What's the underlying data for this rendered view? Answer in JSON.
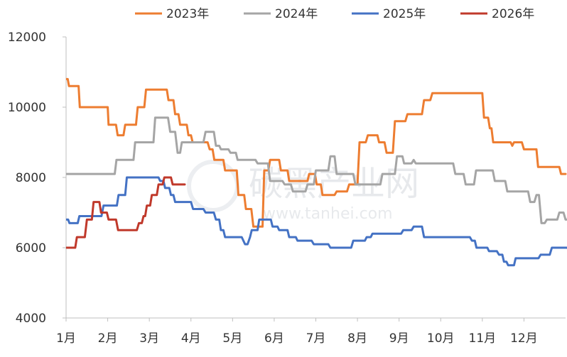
{
  "chart_data": {
    "type": "line",
    "title": "",
    "xlabel": "",
    "ylabel": "",
    "ylim": [
      4000,
      12000
    ],
    "yticks": [
      4000,
      6000,
      8000,
      10000,
      12000
    ],
    "xlim": [
      1,
      13
    ],
    "xticks": [
      {
        "value": 1,
        "label": "1月"
      },
      {
        "value": 2,
        "label": "2月"
      },
      {
        "value": 3,
        "label": "3月"
      },
      {
        "value": 4,
        "label": "4月"
      },
      {
        "value": 5,
        "label": "5月"
      },
      {
        "value": 6,
        "label": "6月"
      },
      {
        "value": 7,
        "label": "7月"
      },
      {
        "value": 8,
        "label": "8月"
      },
      {
        "value": 9,
        "label": "9月"
      },
      {
        "value": 10,
        "label": "10月"
      },
      {
        "value": 11,
        "label": "11月"
      },
      {
        "value": 12,
        "label": "12月"
      }
    ],
    "grid": false,
    "legend_position": "top",
    "series": [
      {
        "name": "2023年",
        "color": "#ED7D31",
        "points": [
          [
            1.0,
            10800
          ],
          [
            1.04,
            10800
          ],
          [
            1.07,
            10600
          ],
          [
            1.3,
            10600
          ],
          [
            1.33,
            10000
          ],
          [
            2.0,
            10000
          ],
          [
            2.02,
            9500
          ],
          [
            2.2,
            9500
          ],
          [
            2.24,
            9200
          ],
          [
            2.38,
            9200
          ],
          [
            2.42,
            9500
          ],
          [
            2.68,
            9500
          ],
          [
            2.72,
            10000
          ],
          [
            2.88,
            10000
          ],
          [
            2.92,
            10500
          ],
          [
            3.42,
            10500
          ],
          [
            3.46,
            10200
          ],
          [
            3.58,
            10200
          ],
          [
            3.62,
            9800
          ],
          [
            3.7,
            9800
          ],
          [
            3.74,
            9500
          ],
          [
            3.9,
            9500
          ],
          [
            3.94,
            9200
          ],
          [
            4.0,
            9200
          ],
          [
            4.04,
            9000
          ],
          [
            4.4,
            9000
          ],
          [
            4.45,
            8800
          ],
          [
            4.52,
            8800
          ],
          [
            4.56,
            8500
          ],
          [
            4.78,
            8500
          ],
          [
            4.82,
            8200
          ],
          [
            5.1,
            8200
          ],
          [
            5.14,
            7500
          ],
          [
            5.28,
            7500
          ],
          [
            5.32,
            7100
          ],
          [
            5.45,
            7100
          ],
          [
            5.5,
            6600
          ],
          [
            5.72,
            6600
          ],
          [
            5.76,
            8200
          ],
          [
            5.86,
            8200
          ],
          [
            5.9,
            8500
          ],
          [
            6.12,
            8500
          ],
          [
            6.16,
            8200
          ],
          [
            6.32,
            8200
          ],
          [
            6.36,
            7900
          ],
          [
            6.8,
            7900
          ],
          [
            6.84,
            8100
          ],
          [
            6.98,
            8100
          ],
          [
            7.02,
            7800
          ],
          [
            7.12,
            7800
          ],
          [
            7.16,
            7500
          ],
          [
            7.45,
            7500
          ],
          [
            7.5,
            7600
          ],
          [
            7.75,
            7600
          ],
          [
            7.8,
            7800
          ],
          [
            8.0,
            7800
          ],
          [
            8.05,
            9000
          ],
          [
            8.2,
            9000
          ],
          [
            8.25,
            9200
          ],
          [
            8.48,
            9200
          ],
          [
            8.52,
            9000
          ],
          [
            8.65,
            9000
          ],
          [
            8.7,
            8700
          ],
          [
            8.85,
            8700
          ],
          [
            8.9,
            9600
          ],
          [
            9.15,
            9600
          ],
          [
            9.2,
            9800
          ],
          [
            9.55,
            9800
          ],
          [
            9.6,
            10200
          ],
          [
            9.75,
            10200
          ],
          [
            9.8,
            10400
          ],
          [
            11.0,
            10400
          ],
          [
            11.04,
            9700
          ],
          [
            11.14,
            9700
          ],
          [
            11.18,
            9400
          ],
          [
            11.22,
            9400
          ],
          [
            11.26,
            9000
          ],
          [
            11.68,
            9000
          ],
          [
            11.72,
            8900
          ],
          [
            11.76,
            9000
          ],
          [
            11.95,
            9000
          ],
          [
            12.0,
            8800
          ],
          [
            12.3,
            8800
          ],
          [
            12.34,
            8300
          ],
          [
            12.85,
            8300
          ],
          [
            12.89,
            8100
          ],
          [
            13.0,
            8100
          ]
        ]
      },
      {
        "name": "2024年",
        "color": "#A5A5A5",
        "points": [
          [
            1.0,
            8100
          ],
          [
            2.17,
            8100
          ],
          [
            2.21,
            8500
          ],
          [
            2.62,
            8500
          ],
          [
            2.66,
            9000
          ],
          [
            3.1,
            9000
          ],
          [
            3.14,
            9700
          ],
          [
            3.45,
            9700
          ],
          [
            3.5,
            9300
          ],
          [
            3.62,
            9300
          ],
          [
            3.68,
            8700
          ],
          [
            3.74,
            8700
          ],
          [
            3.78,
            9000
          ],
          [
            4.3,
            9000
          ],
          [
            4.35,
            9300
          ],
          [
            4.55,
            9300
          ],
          [
            4.6,
            8900
          ],
          [
            4.68,
            8900
          ],
          [
            4.72,
            8800
          ],
          [
            4.9,
            8800
          ],
          [
            4.95,
            8700
          ],
          [
            5.08,
            8700
          ],
          [
            5.12,
            8500
          ],
          [
            5.55,
            8500
          ],
          [
            5.6,
            8400
          ],
          [
            5.85,
            8400
          ],
          [
            5.9,
            7900
          ],
          [
            6.2,
            7900
          ],
          [
            6.25,
            7800
          ],
          [
            6.4,
            7800
          ],
          [
            6.45,
            7600
          ],
          [
            6.75,
            7600
          ],
          [
            6.8,
            7800
          ],
          [
            6.95,
            7800
          ],
          [
            7.0,
            8200
          ],
          [
            7.3,
            8200
          ],
          [
            7.35,
            8600
          ],
          [
            7.45,
            8600
          ],
          [
            7.5,
            8100
          ],
          [
            7.9,
            8100
          ],
          [
            7.95,
            7800
          ],
          [
            8.55,
            7800
          ],
          [
            8.6,
            8100
          ],
          [
            8.9,
            8100
          ],
          [
            8.95,
            8600
          ],
          [
            9.08,
            8600
          ],
          [
            9.12,
            8400
          ],
          [
            9.3,
            8400
          ],
          [
            9.35,
            8500
          ],
          [
            9.4,
            8400
          ],
          [
            10.3,
            8400
          ],
          [
            10.35,
            8100
          ],
          [
            10.55,
            8100
          ],
          [
            10.6,
            7800
          ],
          [
            10.8,
            7800
          ],
          [
            10.85,
            8200
          ],
          [
            11.25,
            8200
          ],
          [
            11.3,
            7900
          ],
          [
            11.55,
            7900
          ],
          [
            11.6,
            7600
          ],
          [
            12.1,
            7600
          ],
          [
            12.15,
            7300
          ],
          [
            12.25,
            7300
          ],
          [
            12.3,
            7500
          ],
          [
            12.36,
            7500
          ],
          [
            12.42,
            6700
          ],
          [
            12.5,
            6700
          ],
          [
            12.55,
            6800
          ],
          [
            12.8,
            6800
          ],
          [
            12.85,
            7000
          ],
          [
            12.95,
            7000
          ],
          [
            13.0,
            6800
          ],
          [
            13.2,
            6800
          ],
          [
            13.25,
            6700
          ],
          [
            13.4,
            6700
          ],
          [
            13.45,
            6800
          ],
          [
            13.55,
            6800
          ]
        ]
      },
      {
        "name": "2025年",
        "color": "#4472C4",
        "points": [
          [
            1.0,
            6800
          ],
          [
            1.05,
            6800
          ],
          [
            1.08,
            6700
          ],
          [
            1.28,
            6700
          ],
          [
            1.32,
            6900
          ],
          [
            1.85,
            6900
          ],
          [
            1.9,
            7200
          ],
          [
            2.22,
            7200
          ],
          [
            2.26,
            7500
          ],
          [
            2.42,
            7500
          ],
          [
            2.46,
            8000
          ],
          [
            3.22,
            8000
          ],
          [
            3.26,
            7900
          ],
          [
            3.34,
            7900
          ],
          [
            3.38,
            7700
          ],
          [
            3.48,
            7700
          ],
          [
            3.52,
            7500
          ],
          [
            3.58,
            7500
          ],
          [
            3.62,
            7300
          ],
          [
            4.0,
            7300
          ],
          [
            4.05,
            7100
          ],
          [
            4.3,
            7100
          ],
          [
            4.35,
            7000
          ],
          [
            4.55,
            7000
          ],
          [
            4.6,
            6800
          ],
          [
            4.68,
            6800
          ],
          [
            4.72,
            6500
          ],
          [
            4.78,
            6500
          ],
          [
            4.82,
            6300
          ],
          [
            5.22,
            6300
          ],
          [
            5.3,
            6100
          ],
          [
            5.36,
            6100
          ],
          [
            5.42,
            6300
          ],
          [
            5.46,
            6500
          ],
          [
            5.6,
            6500
          ],
          [
            5.64,
            6800
          ],
          [
            5.92,
            6800
          ],
          [
            5.96,
            6600
          ],
          [
            6.08,
            6600
          ],
          [
            6.12,
            6500
          ],
          [
            6.32,
            6500
          ],
          [
            6.36,
            6300
          ],
          [
            6.52,
            6300
          ],
          [
            6.56,
            6200
          ],
          [
            6.9,
            6200
          ],
          [
            6.95,
            6100
          ],
          [
            7.3,
            6100
          ],
          [
            7.35,
            6000
          ],
          [
            7.85,
            6000
          ],
          [
            7.9,
            6200
          ],
          [
            8.18,
            6200
          ],
          [
            8.22,
            6300
          ],
          [
            8.32,
            6300
          ],
          [
            8.36,
            6400
          ],
          [
            9.05,
            6400
          ],
          [
            9.1,
            6500
          ],
          [
            9.3,
            6500
          ],
          [
            9.35,
            6600
          ],
          [
            9.55,
            6600
          ],
          [
            9.6,
            6300
          ],
          [
            10.7,
            6300
          ],
          [
            10.75,
            6200
          ],
          [
            10.82,
            6200
          ],
          [
            10.86,
            6000
          ],
          [
            11.12,
            6000
          ],
          [
            11.16,
            5900
          ],
          [
            11.35,
            5900
          ],
          [
            11.4,
            5800
          ],
          [
            11.48,
            5800
          ],
          [
            11.52,
            5600
          ],
          [
            11.58,
            5600
          ],
          [
            11.62,
            5500
          ],
          [
            11.76,
            5500
          ],
          [
            11.8,
            5700
          ],
          [
            12.35,
            5700
          ],
          [
            12.4,
            5800
          ],
          [
            12.62,
            5800
          ],
          [
            12.67,
            6000
          ],
          [
            13.05,
            6000
          ],
          [
            13.1,
            5800
          ],
          [
            13.55,
            5800
          ],
          [
            13.58,
            6000
          ]
        ]
      },
      {
        "name": "2026年",
        "color": "#C0392B",
        "points": [
          [
            1.0,
            6000
          ],
          [
            1.22,
            6000
          ],
          [
            1.26,
            6300
          ],
          [
            1.45,
            6300
          ],
          [
            1.5,
            6800
          ],
          [
            1.62,
            6800
          ],
          [
            1.66,
            7300
          ],
          [
            1.8,
            7300
          ],
          [
            1.84,
            7000
          ],
          [
            1.98,
            7000
          ],
          [
            2.02,
            6800
          ],
          [
            2.2,
            6800
          ],
          [
            2.25,
            6500
          ],
          [
            2.7,
            6500
          ],
          [
            2.75,
            6700
          ],
          [
            2.82,
            6700
          ],
          [
            2.86,
            6900
          ],
          [
            2.9,
            6900
          ],
          [
            2.94,
            7200
          ],
          [
            3.02,
            7200
          ],
          [
            3.06,
            7500
          ],
          [
            3.18,
            7500
          ],
          [
            3.22,
            7800
          ],
          [
            3.32,
            7800
          ],
          [
            3.36,
            8000
          ],
          [
            3.52,
            8000
          ],
          [
            3.56,
            7800
          ],
          [
            3.85,
            7800
          ]
        ]
      }
    ]
  },
  "watermark": {
    "text": "碳黑产业网",
    "url": "www.tanhei.com"
  }
}
